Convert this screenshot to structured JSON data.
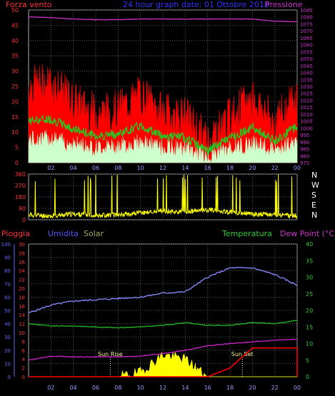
{
  "top_panel": {
    "left_title": "Forza vento",
    "center_title": "24 hour graph date: 01 Ottobre 2018",
    "right_title": "Pressione",
    "left_ticks": [
      "50",
      "45",
      "40",
      "35",
      "30",
      "25",
      "20",
      "15",
      "10",
      "5",
      "0"
    ],
    "right_ticks": [
      "1085",
      "1080",
      "1075",
      "1070",
      "1065",
      "1060",
      "1055",
      "1050",
      "1045",
      "1040",
      "1035",
      "1030",
      "1025",
      "1020",
      "1015",
      "1010",
      "1005",
      "1000",
      "995",
      "990",
      "985",
      "980",
      "975"
    ],
    "right_ticks_visible": [
      "1085",
      "1080",
      "1075",
      "1070",
      "1065",
      "1060",
      "1055",
      "1050",
      "1045",
      "1040",
      "1035",
      "1030",
      "1025",
      "1020",
      "1015",
      "1010",
      "1005",
      "1000",
      "995",
      "990",
      "985",
      "980",
      "975"
    ]
  },
  "wind_dir_panel": {
    "left_ticks": [
      "360",
      "270",
      "180",
      "90",
      "0"
    ],
    "compass": [
      "N",
      "W",
      "S",
      "E",
      "N"
    ]
  },
  "bottom_panel": {
    "labels": {
      "rain": "Pioggia",
      "humidity": "Umidita",
      "solar": "Solar",
      "temperature": "Temperatura",
      "dewpoint": "Dew Point (°C)",
      "sunrise": "Sun Rise",
      "sunset": "Sun Set"
    },
    "humidity_ticks": [
      "100",
      "90",
      "80",
      "70",
      "60",
      "50",
      "40",
      "30",
      "20",
      "10",
      "0"
    ],
    "rain_ticks": [
      "30",
      "28",
      "26",
      "24",
      "22",
      "20",
      "18",
      "16",
      "14",
      "12",
      "10",
      "8",
      "6",
      "4",
      "2",
      "0"
    ],
    "temp_ticks": [
      "40",
      "35",
      "30",
      "25",
      "20",
      "15",
      "10",
      "5",
      "0"
    ]
  },
  "x_ticks": [
    "02",
    "04",
    "06",
    "08",
    "10",
    "12",
    "14",
    "16",
    "18",
    "20",
    "22",
    "00"
  ],
  "colors": {
    "gust": "#ff0000",
    "wind_avg": "#22cc22",
    "wind_low": "#ccffcc",
    "pressure": "#cc33cc",
    "wind_dir": "#ffff00",
    "humidity": "#8888ff",
    "temperature": "#22bb22",
    "dewpoint": "#cc22cc",
    "rain": "#ff0000",
    "solar": "#ffff00",
    "grid": "#555555",
    "axis_left": "#ff3333",
    "axis_humidity": "#6666ff",
    "axis_temp": "#33cc33"
  },
  "chart_data": [
    {
      "type": "line",
      "title": "24 hour graph date: 01 Ottobre 2018",
      "x_hours": [
        0,
        2,
        4,
        6,
        8,
        10,
        12,
        14,
        16,
        18,
        20,
        22,
        24
      ],
      "ylim": [
        0,
        50
      ],
      "y2lim": [
        975,
        1085
      ],
      "series": [
        {
          "name": "Forza vento",
          "axis": "left",
          "values": [
            25,
            26,
            20,
            16,
            17,
            22,
            16,
            15,
            7,
            15,
            21,
            13,
            22
          ]
        },
        {
          "name": "Pressione",
          "axis": "right",
          "values": [
            1080,
            1079.5,
            1078.5,
            1078,
            1078,
            1078.5,
            1078.5,
            1078.5,
            1078.5,
            1078.5,
            1078.5,
            1077,
            1076.5
          ]
        }
      ]
    },
    {
      "type": "line",
      "title": "",
      "x_hours": [
        0,
        2,
        4,
        6,
        8,
        10,
        12,
        14,
        16,
        18,
        20,
        22,
        24
      ],
      "ylim": [
        0,
        360
      ],
      "series": [
        {
          "name": "",
          "values": [
            40,
            30,
            45,
            35,
            40,
            55,
            70,
            60,
            80,
            60,
            45,
            40,
            30
          ]
        }
      ]
    },
    {
      "type": "line",
      "title": "",
      "x_hours": [
        0,
        2,
        4,
        6,
        8,
        10,
        12,
        14,
        16,
        18,
        20,
        22,
        24
      ],
      "series": [
        {
          "name": "Umidita",
          "axis": "humidity",
          "ylim": [
            0,
            100
          ],
          "values": [
            48,
            54,
            57,
            58,
            59,
            60,
            63,
            64,
            75,
            82,
            82,
            77,
            69
          ]
        },
        {
          "name": "Temperatura",
          "axis": "temp",
          "ylim": [
            0,
            40
          ],
          "values": [
            16,
            15.3,
            15.3,
            15,
            14.8,
            15,
            15.5,
            16.3,
            15.5,
            15.5,
            16.3,
            16,
            17
          ]
        },
        {
          "name": "Dew Point (°C)",
          "axis": "temp",
          "ylim": [
            0,
            40
          ],
          "values": [
            5,
            6.2,
            6,
            6,
            6,
            6.2,
            7,
            8,
            9.3,
            10,
            10.5,
            11,
            11.3
          ]
        },
        {
          "name": "Pioggia",
          "axis": "rain",
          "ylim": [
            0,
            30
          ],
          "values": [
            0,
            0,
            0,
            0,
            0,
            0,
            0,
            0,
            0,
            2,
            6.5,
            6.5,
            6.5
          ]
        },
        {
          "name": "Solar",
          "axis": "rain",
          "values": [
            0,
            0,
            0,
            0,
            0,
            1,
            5,
            4,
            0,
            0,
            0,
            0,
            0
          ]
        }
      ]
    }
  ]
}
